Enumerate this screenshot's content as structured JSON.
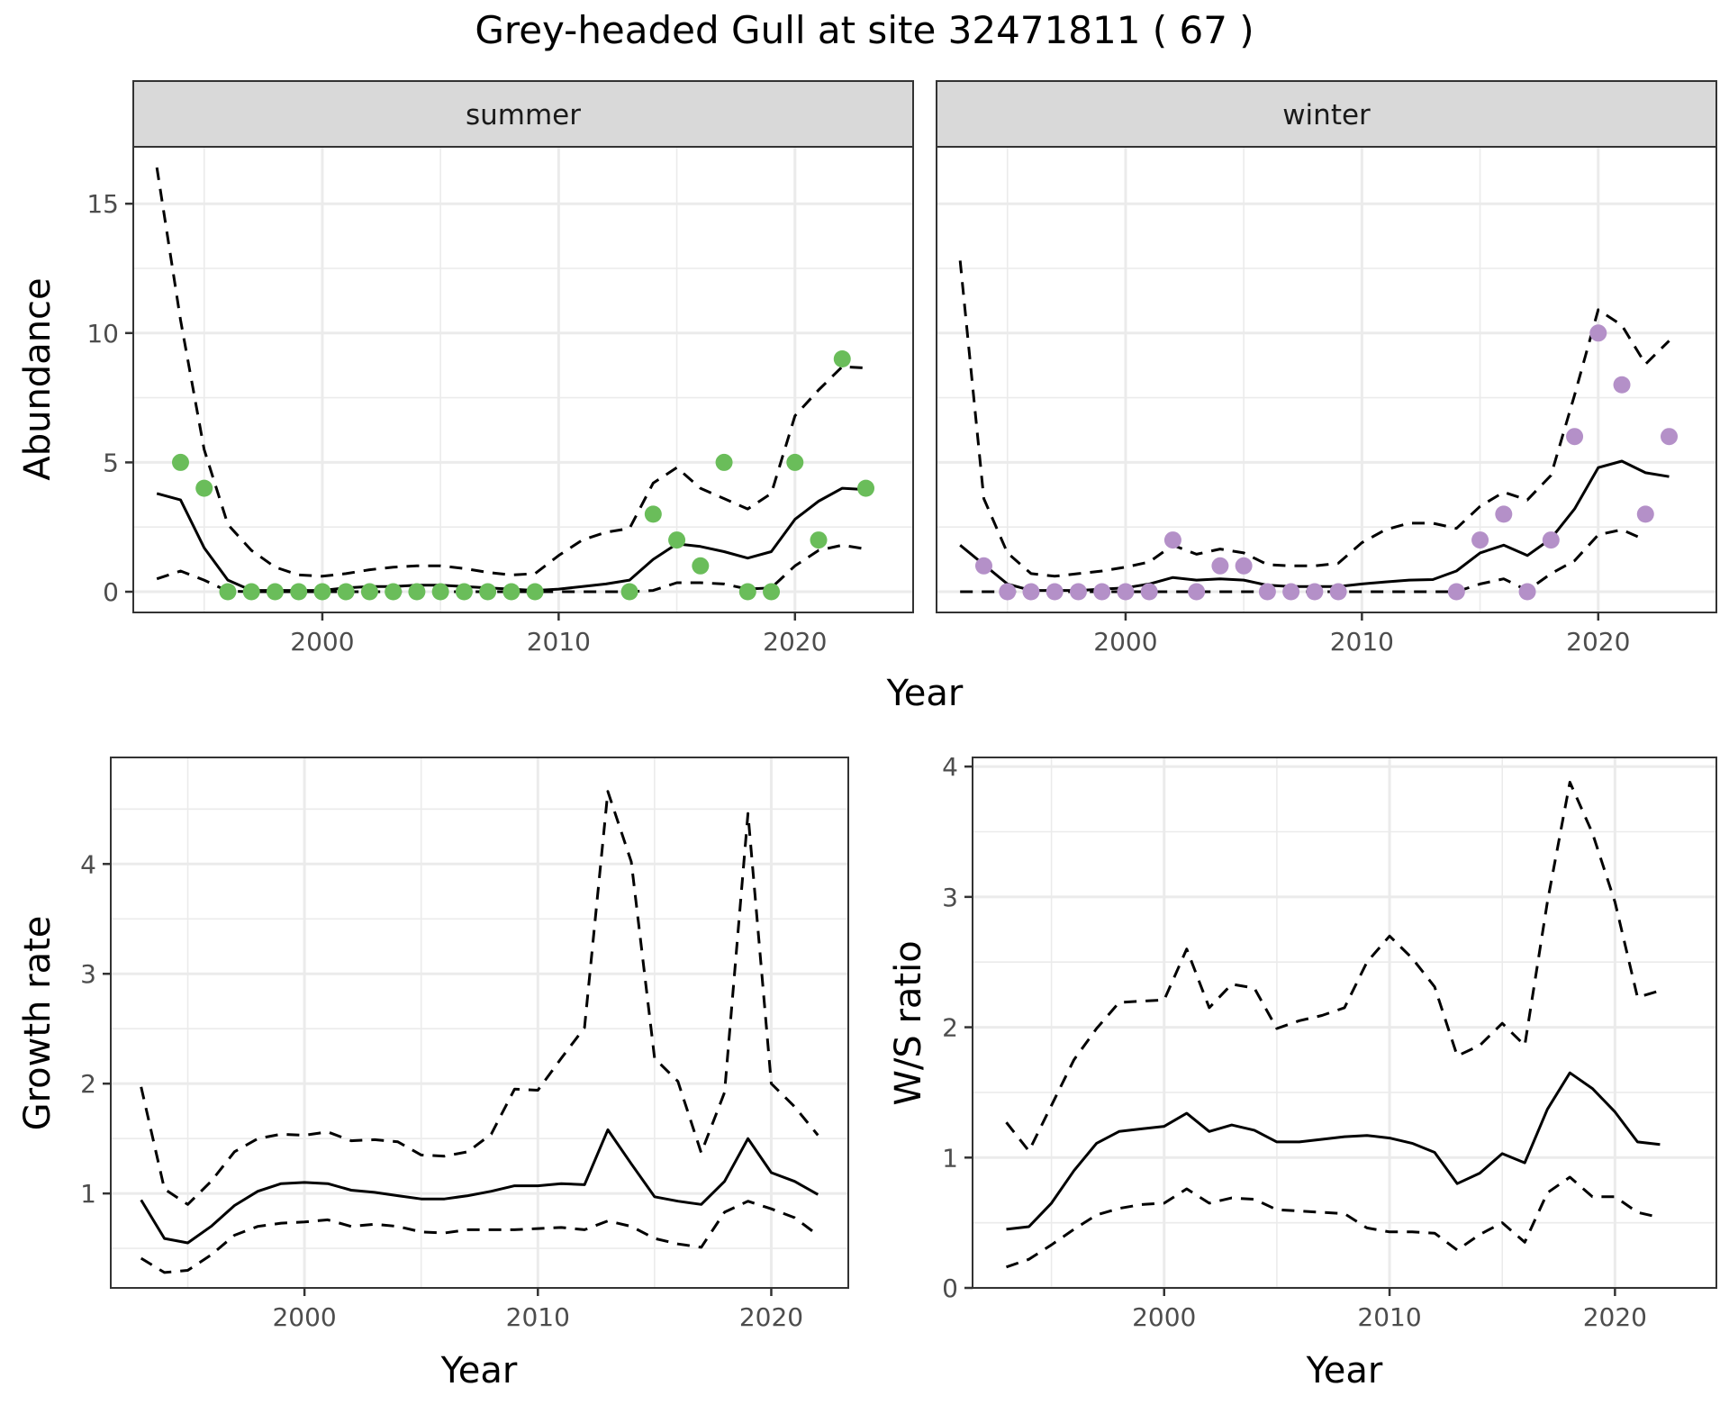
{
  "title": "Grey-headed Gull at site 32471811 ( 67 )",
  "colors": {
    "summer_points": "#6abd5a",
    "winter_points": "#b490c8",
    "lines": "#000000",
    "strip_bg": "#d9d9d9",
    "grid": "#ebebeb",
    "panel_border": "#333333"
  },
  "chart_data": [
    {
      "id": "abundance",
      "type": "scatter",
      "title": "",
      "facets": [
        "summer",
        "winter"
      ],
      "xlabel": "Year",
      "ylabel": "Abundance",
      "xlim": [
        1992,
        2025
      ],
      "ylim": [
        -0.8,
        17.2
      ],
      "xticks": [
        2000,
        2010,
        2020
      ],
      "yticks": [
        0,
        5,
        10,
        15
      ],
      "grid": true,
      "panels": [
        {
          "facet": "summer",
          "points": {
            "x": [
              1994,
              1995,
              1996,
              1997,
              1998,
              1999,
              2000,
              2001,
              2002,
              2003,
              2004,
              2005,
              2006,
              2007,
              2008,
              2009,
              2013,
              2014,
              2015,
              2016,
              2017,
              2018,
              2019,
              2020,
              2021,
              2022,
              2023
            ],
            "y": [
              5,
              4,
              0,
              0,
              0,
              0,
              0,
              0,
              0,
              0,
              0,
              0,
              0,
              0,
              0,
              0,
              0,
              3,
              2,
              1,
              5,
              0,
              0,
              5,
              2,
              9,
              4
            ]
          },
          "lines_x": [
            1993,
            1994,
            1995,
            1996,
            1997,
            1998,
            1999,
            2000,
            2001,
            2002,
            2003,
            2004,
            2005,
            2006,
            2007,
            2008,
            2009,
            2010,
            2011,
            2012,
            2013,
            2014,
            2015,
            2016,
            2017,
            2018,
            2019,
            2020,
            2021,
            2022,
            2023
          ],
          "series": [
            {
              "name": "estimate",
              "style": "solid",
              "values": [
                3.8,
                3.55,
                1.7,
                0.45,
                0.05,
                0.05,
                0.05,
                0.05,
                0.15,
                0.2,
                0.2,
                0.25,
                0.25,
                0.2,
                0.15,
                0.1,
                0.05,
                0.1,
                0.2,
                0.3,
                0.45,
                1.25,
                1.85,
                1.75,
                1.55,
                1.3,
                1.55,
                2.8,
                3.5,
                4.0,
                3.95
              ]
            },
            {
              "name": "upper",
              "style": "dashed",
              "values": [
                16.4,
                10.5,
                5.5,
                2.6,
                1.6,
                0.95,
                0.65,
                0.6,
                0.7,
                0.85,
                0.95,
                1.0,
                1.0,
                0.9,
                0.75,
                0.65,
                0.7,
                1.4,
                2.0,
                2.3,
                2.45,
                4.2,
                4.8,
                4.0,
                3.6,
                3.2,
                3.8,
                6.8,
                7.8,
                8.7,
                8.65
              ]
            },
            {
              "name": "lower",
              "style": "dashed",
              "values": [
                0.5,
                0.8,
                0.45,
                0.02,
                0,
                0,
                0,
                0,
                0,
                0,
                0,
                0,
                0,
                0,
                0,
                0,
                0,
                0,
                0,
                0,
                0,
                0.05,
                0.35,
                0.35,
                0.3,
                0.1,
                0.15,
                1.0,
                1.6,
                1.8,
                1.65
              ]
            }
          ]
        },
        {
          "facet": "winter",
          "points": {
            "x": [
              1994,
              1995,
              1996,
              1997,
              1998,
              1999,
              2000,
              2001,
              2002,
              2003,
              2004,
              2005,
              2006,
              2007,
              2008,
              2009,
              2014,
              2015,
              2016,
              2017,
              2018,
              2019,
              2020,
              2021,
              2022,
              2023
            ],
            "y": [
              1,
              0,
              0,
              0,
              0,
              0,
              0,
              0,
              2,
              0,
              1,
              1,
              0,
              0,
              0,
              0,
              0,
              2,
              3,
              0,
              2,
              6,
              10,
              8,
              3,
              6
            ]
          },
          "lines_x": [
            1993,
            1994,
            1995,
            1996,
            1997,
            1998,
            1999,
            2000,
            2001,
            2002,
            2003,
            2004,
            2005,
            2006,
            2007,
            2008,
            2009,
            2010,
            2011,
            2012,
            2013,
            2014,
            2015,
            2016,
            2017,
            2018,
            2019,
            2020,
            2021,
            2022,
            2023
          ],
          "series": [
            {
              "name": "estimate",
              "style": "solid",
              "values": [
                1.8,
                1.05,
                0.3,
                0.05,
                0.05,
                0.05,
                0.1,
                0.15,
                0.3,
                0.55,
                0.45,
                0.5,
                0.45,
                0.25,
                0.2,
                0.2,
                0.2,
                0.3,
                0.38,
                0.45,
                0.47,
                0.8,
                1.5,
                1.8,
                1.4,
                2.05,
                3.2,
                4.8,
                5.05,
                4.6,
                4.45
              ]
            },
            {
              "name": "upper",
              "style": "dashed",
              "values": [
                12.8,
                3.6,
                1.5,
                0.7,
                0.6,
                0.7,
                0.8,
                0.95,
                1.15,
                1.8,
                1.45,
                1.65,
                1.5,
                1.05,
                1.0,
                1.0,
                1.1,
                1.9,
                2.4,
                2.65,
                2.65,
                2.45,
                3.3,
                3.85,
                3.55,
                4.5,
                7.6,
                10.9,
                10.3,
                8.8,
                9.7
              ]
            },
            {
              "name": "lower",
              "style": "dashed",
              "values": [
                0,
                0,
                0,
                0,
                0,
                0,
                0,
                0,
                0,
                0,
                0,
                0,
                0,
                0,
                0,
                0,
                0,
                0,
                0,
                0,
                0,
                0,
                0.3,
                0.5,
                0.05,
                0.7,
                1.2,
                2.2,
                2.4,
                2.0,
                null
              ]
            }
          ]
        }
      ]
    },
    {
      "id": "growth",
      "type": "line",
      "title": "",
      "xlabel": "Year",
      "ylabel": "Growth rate",
      "xlim": [
        1991.7,
        2023.3
      ],
      "ylim": [
        0.14,
        4.97
      ],
      "xticks": [
        2000,
        2010,
        2020
      ],
      "yticks": [
        1,
        2,
        3,
        4
      ],
      "grid": true,
      "x": [
        1993,
        1994,
        1995,
        1996,
        1997,
        1998,
        1999,
        2000,
        2001,
        2002,
        2003,
        2004,
        2005,
        2006,
        2007,
        2008,
        2009,
        2010,
        2011,
        2012,
        2013,
        2014,
        2015,
        2016,
        2017,
        2018,
        2019,
        2020,
        2021,
        2022
      ],
      "series": [
        {
          "name": "estimate",
          "style": "solid",
          "values": [
            0.94,
            0.59,
            0.55,
            0.7,
            0.89,
            1.02,
            1.09,
            1.1,
            1.09,
            1.03,
            1.01,
            0.98,
            0.95,
            0.95,
            0.98,
            1.02,
            1.07,
            1.07,
            1.09,
            1.08,
            1.58,
            1.27,
            0.97,
            0.93,
            0.9,
            1.11,
            1.5,
            1.19,
            1.11,
            0.99
          ]
        },
        {
          "name": "upper",
          "style": "dashed",
          "values": [
            1.97,
            1.04,
            0.9,
            1.11,
            1.38,
            1.5,
            1.54,
            1.53,
            1.56,
            1.48,
            1.49,
            1.47,
            1.35,
            1.34,
            1.38,
            1.54,
            1.95,
            1.94,
            2.23,
            2.51,
            4.66,
            4.02,
            2.23,
            2.02,
            1.37,
            1.92,
            4.46,
            2.0,
            1.79,
            1.53
          ]
        },
        {
          "name": "lower",
          "style": "dashed",
          "values": [
            0.41,
            0.28,
            0.3,
            0.44,
            0.62,
            0.7,
            0.73,
            0.74,
            0.76,
            0.7,
            0.72,
            0.7,
            0.65,
            0.64,
            0.67,
            0.67,
            0.67,
            0.68,
            0.69,
            0.67,
            0.75,
            0.7,
            0.59,
            0.54,
            0.51,
            0.83,
            0.93,
            0.86,
            0.78,
            0.62
          ]
        }
      ]
    },
    {
      "id": "ws_ratio",
      "type": "line",
      "title": "",
      "xlabel": "Year",
      "ylabel": "W/S ratio",
      "xlim": [
        1991.5,
        2024.5
      ],
      "ylim": [
        0,
        4.07
      ],
      "xticks": [
        2000,
        2010,
        2020
      ],
      "yticks": [
        0,
        1,
        2,
        3,
        4
      ],
      "grid": true,
      "x": [
        1993,
        1994,
        1995,
        1996,
        1997,
        1998,
        1999,
        2000,
        2001,
        2002,
        2003,
        2004,
        2005,
        2006,
        2007,
        2008,
        2009,
        2010,
        2011,
        2012,
        2013,
        2014,
        2015,
        2016,
        2017,
        2018,
        2019,
        2020,
        2021,
        2022
      ],
      "series": [
        {
          "name": "estimate",
          "style": "solid",
          "values": [
            0.45,
            0.47,
            0.65,
            0.9,
            1.11,
            1.2,
            1.22,
            1.24,
            1.34,
            1.2,
            1.25,
            1.21,
            1.12,
            1.12,
            1.14,
            1.16,
            1.17,
            1.15,
            1.11,
            1.04,
            0.8,
            0.88,
            1.03,
            0.96,
            1.37,
            1.65,
            1.53,
            1.35,
            1.12,
            1.1
          ]
        },
        {
          "name": "upper",
          "style": "dashed",
          "values": [
            1.27,
            1.05,
            1.4,
            1.75,
            1.99,
            2.19,
            2.2,
            2.21,
            2.6,
            2.15,
            2.33,
            2.3,
            1.99,
            2.05,
            2.09,
            2.15,
            2.5,
            2.7,
            2.53,
            2.31,
            1.78,
            1.86,
            2.03,
            1.86,
            2.96,
            3.88,
            3.49,
            2.96,
            2.23,
            2.28
          ]
        },
        {
          "name": "lower",
          "style": "dashed",
          "values": [
            0.16,
            0.22,
            0.33,
            0.45,
            0.56,
            0.61,
            0.64,
            0.65,
            0.76,
            0.65,
            0.69,
            0.68,
            0.6,
            0.59,
            0.58,
            0.57,
            0.46,
            0.43,
            0.43,
            0.42,
            0.29,
            0.41,
            0.5,
            0.35,
            0.73,
            0.85,
            0.7,
            0.7,
            0.58,
            0.54
          ]
        }
      ]
    }
  ]
}
